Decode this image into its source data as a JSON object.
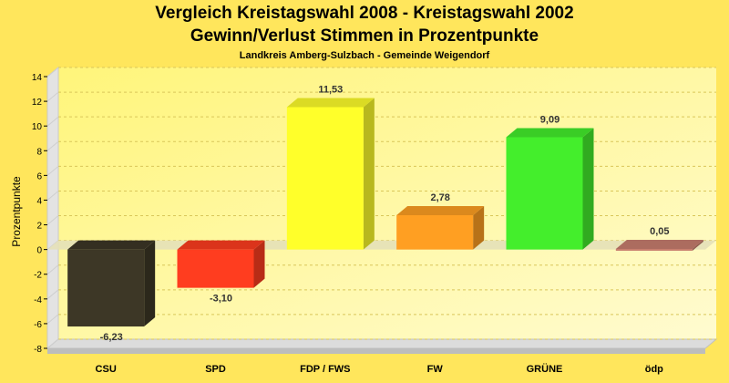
{
  "chart_data": {
    "type": "bar",
    "title": "Vergleich Kreistagswahl 2008 - Kreistagswahl 2002",
    "subtitle": "Gewinn/Verlust Stimmen in Prozentpunkte",
    "caption": "Landkreis Amberg-Sulzbach - Gemeinde Weigendorf",
    "xlabel": "",
    "ylabel": "Prozentpunkte",
    "ylim": [
      -8,
      14
    ],
    "yticks": [
      "-8",
      "-6",
      "-4",
      "-2",
      "0",
      "2",
      "4",
      "6",
      "8",
      "10",
      "12",
      "14"
    ],
    "categories": [
      "CSU",
      "SPD",
      "FDP / FWS",
      "FW",
      "GRÜNE",
      "ödp"
    ],
    "values": [
      -6.23,
      -3.1,
      11.53,
      2.78,
      9.09,
      0.05
    ],
    "value_labels": [
      "-6,23",
      "-3,10",
      "11,53",
      "2,78",
      "9,09",
      "0,05"
    ],
    "colors": [
      "#3d3726",
      "#ff3d1f",
      "#ffff2a",
      "#ff9f22",
      "#44ee2c",
      "#c87e6e"
    ],
    "grid": true,
    "legend": "none"
  }
}
